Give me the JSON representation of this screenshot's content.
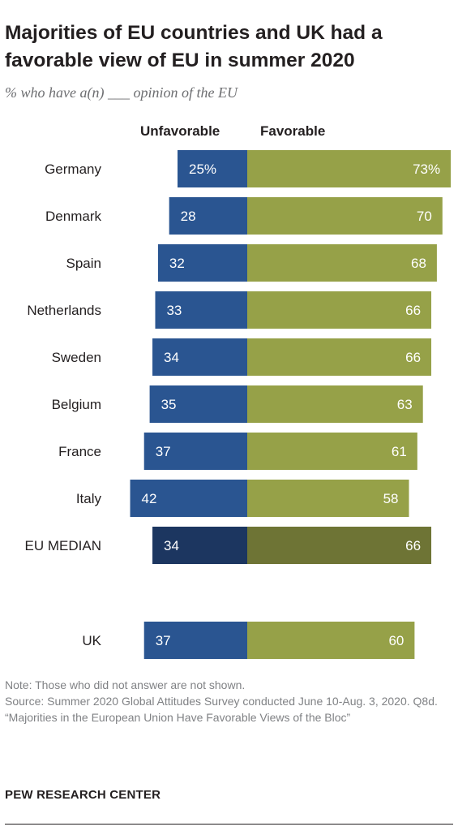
{
  "title": "Majorities of EU countries and UK had a favorable view of EU in summer 2020",
  "subtitle": "% who have a(n) ___ opinion of the EU",
  "legend": {
    "unfavorable": "Unfavorable",
    "favorable": "Favorable"
  },
  "colors": {
    "unfavorable": "#2a5591",
    "favorable": "#96a148",
    "median_unfavorable": "#1c3660",
    "median_favorable": "#6e7435",
    "label_text": "#ffffff"
  },
  "chart_data": {
    "type": "bar",
    "orientation": "horizontal-diverging",
    "categories": [
      "Germany",
      "Denmark",
      "Spain",
      "Netherlands",
      "Sweden",
      "Belgium",
      "France",
      "Italy",
      "EU MEDIAN",
      "UK"
    ],
    "series": [
      {
        "name": "Unfavorable",
        "values": [
          25,
          28,
          32,
          33,
          34,
          35,
          37,
          42,
          34,
          37
        ]
      },
      {
        "name": "Favorable",
        "values": [
          73,
          70,
          68,
          66,
          66,
          63,
          61,
          58,
          66,
          60
        ]
      }
    ],
    "value_labels": {
      "unfavorable": [
        "25%",
        "28",
        "32",
        "33",
        "34",
        "35",
        "37",
        "42",
        "34",
        "37"
      ],
      "favorable": [
        "73%",
        "70",
        "68",
        "66",
        "66",
        "63",
        "61",
        "58",
        "66",
        "60"
      ]
    },
    "highlight_category": "EU MEDIAN",
    "xlim": [
      0,
      100
    ]
  },
  "notes": {
    "note": "Note: Those who did not answer are not shown.",
    "source": "Source: Summer 2020 Global Attitudes Survey conducted June 10-Aug. 3, 2020. Q8d.",
    "report": "“Majorities in the European Union Have Favorable Views of the Bloc”"
  },
  "brand": "PEW RESEARCH CENTER"
}
